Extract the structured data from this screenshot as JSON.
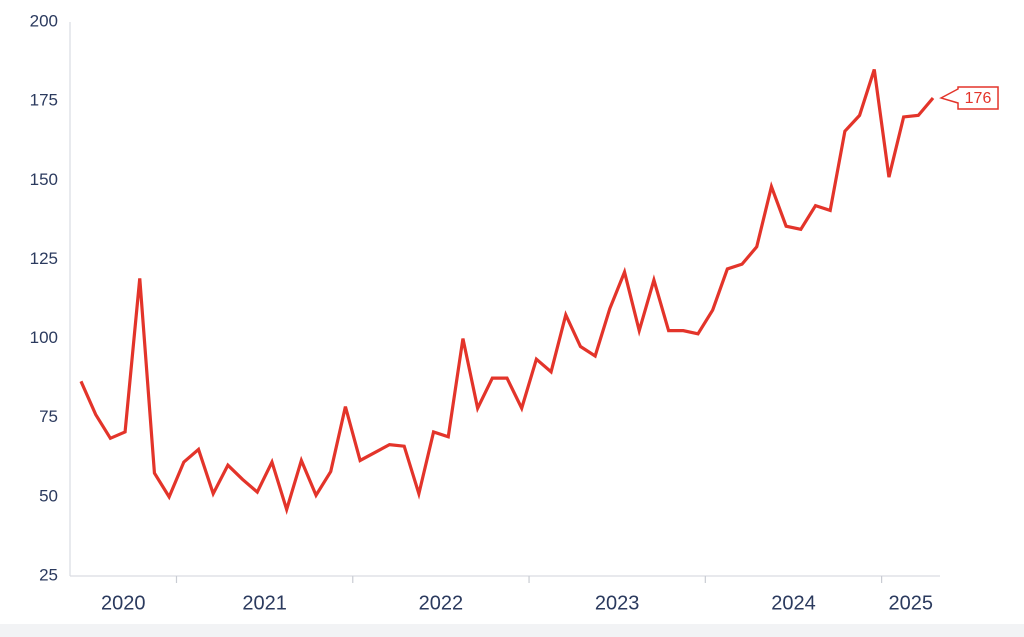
{
  "chart_data": {
    "type": "line",
    "categories": [
      "2020",
      null,
      null,
      null,
      null,
      null,
      null,
      "2021",
      null,
      null,
      null,
      null,
      null,
      null,
      null,
      null,
      null,
      null,
      null,
      "2022",
      null,
      null,
      null,
      null,
      null,
      null,
      null,
      null,
      null,
      null,
      null,
      "2023",
      null,
      null,
      null,
      null,
      null,
      null,
      null,
      null,
      null,
      null,
      null,
      "2024",
      null,
      null,
      null,
      null,
      null,
      null,
      null,
      null,
      null,
      null,
      null,
      "2025",
      null,
      null,
      null
    ],
    "values": [
      86.5,
      76,
      68.5,
      70.5,
      119,
      57.5,
      50,
      61,
      65,
      51,
      60,
      55.5,
      51.5,
      61,
      46,
      61.5,
      50.5,
      58,
      78.5,
      61.5,
      64,
      66.5,
      66,
      51,
      70.5,
      69,
      100,
      78,
      87.5,
      87.5,
      78,
      93.5,
      89.5,
      107.5,
      97.5,
      94.5,
      109.5,
      121,
      102.5,
      118.5,
      102.5,
      102.5,
      101.5,
      109,
      122,
      123.5,
      129,
      148,
      135.5,
      134.5,
      142,
      140.5,
      165.5,
      170.5,
      185,
      151,
      170,
      170.5,
      176
    ],
    "color": "#e3342a",
    "ylim": [
      25,
      200
    ],
    "yticks": [
      25,
      50,
      75,
      100,
      125,
      150,
      175,
      200
    ],
    "grid": false
  }
}
